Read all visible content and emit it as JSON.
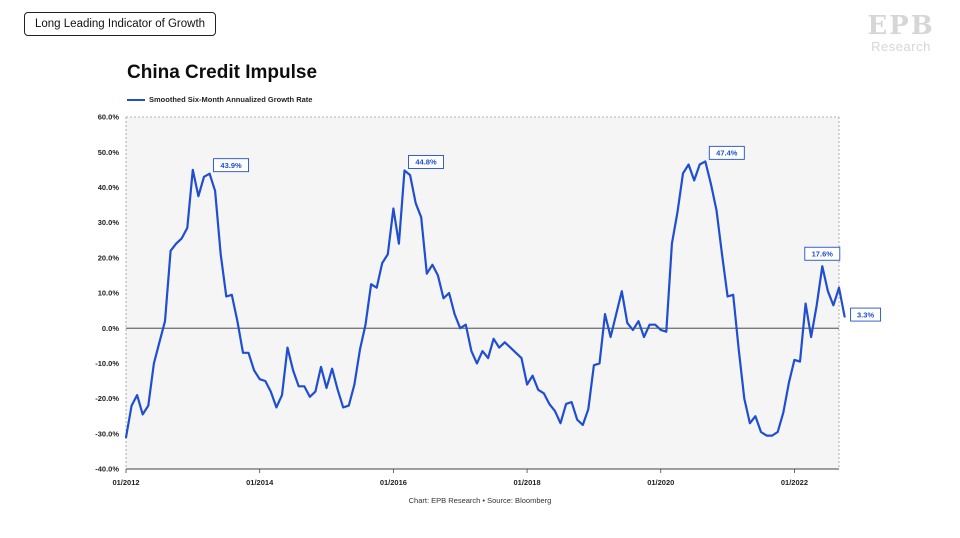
{
  "tag_label": "Long Leading Indicator of Growth",
  "logo": {
    "mark": "EPB",
    "sub": "Research"
  },
  "chart_data": {
    "type": "line",
    "title": "China Credit Impulse",
    "ylim": [
      -40,
      60
    ],
    "y_ticks": [
      -40,
      -30,
      -20,
      -10,
      0,
      10,
      20,
      30,
      40,
      50,
      60
    ],
    "y_tick_labels": [
      "-40.0%",
      "-30.0%",
      "-20.0%",
      "-10.0%",
      "0.0%",
      "10.0%",
      "20.0%",
      "30.0%",
      "40.0%",
      "50.0%",
      "60.0%"
    ],
    "x_tick_labels": [
      "01/2012",
      "01/2014",
      "01/2016",
      "01/2018",
      "01/2020",
      "01/2022"
    ],
    "x_tick_positions": [
      "2012-01",
      "2014-01",
      "2016-01",
      "2018-01",
      "2020-01",
      "2022-01"
    ],
    "xlim": [
      "2012-01",
      "2022-09"
    ],
    "series": [
      {
        "name": "Smoothed Six-Month Annualized Growth Rate",
        "color": "#1f4fd0",
        "points": [
          [
            "2012-01",
            -31
          ],
          [
            "2012-02",
            -22
          ],
          [
            "2012-03",
            -19
          ],
          [
            "2012-04",
            -24.5
          ],
          [
            "2012-05",
            -22
          ],
          [
            "2012-06",
            -10
          ],
          [
            "2012-07",
            -4
          ],
          [
            "2012-08",
            2
          ],
          [
            "2012-09",
            22
          ],
          [
            "2012-10",
            24
          ],
          [
            "2012-11",
            25.5
          ],
          [
            "2012-12",
            28.5
          ],
          [
            "2013-01",
            45
          ],
          [
            "2013-02",
            37.5
          ],
          [
            "2013-03",
            43
          ],
          [
            "2013-04",
            43.9
          ],
          [
            "2013-05",
            39
          ],
          [
            "2013-06",
            21
          ],
          [
            "2013-07",
            9
          ],
          [
            "2013-08",
            9.5
          ],
          [
            "2013-09",
            2
          ],
          [
            "2013-10",
            -7
          ],
          [
            "2013-11",
            -7
          ],
          [
            "2013-12",
            -12
          ],
          [
            "2014-01",
            -14.5
          ],
          [
            "2014-02",
            -15
          ],
          [
            "2014-03",
            -18
          ],
          [
            "2014-04",
            -22.5
          ],
          [
            "2014-05",
            -19
          ],
          [
            "2014-06",
            -5.5
          ],
          [
            "2014-07",
            -12
          ],
          [
            "2014-08",
            -16.5
          ],
          [
            "2014-09",
            -16.5
          ],
          [
            "2014-10",
            -19.5
          ],
          [
            "2014-11",
            -18
          ],
          [
            "2014-12",
            -11
          ],
          [
            "2015-01",
            -17
          ],
          [
            "2015-02",
            -11.5
          ],
          [
            "2015-03",
            -17.5
          ],
          [
            "2015-04",
            -22.5
          ],
          [
            "2015-05",
            -22
          ],
          [
            "2015-06",
            -16
          ],
          [
            "2015-07",
            -6
          ],
          [
            "2015-08",
            1
          ],
          [
            "2015-09",
            12.5
          ],
          [
            "2015-10",
            11.5
          ],
          [
            "2015-11",
            18.5
          ],
          [
            "2015-12",
            21
          ],
          [
            "2016-01",
            34
          ],
          [
            "2016-02",
            24
          ],
          [
            "2016-03",
            44.8
          ],
          [
            "2016-04",
            43.5
          ],
          [
            "2016-05",
            35.5
          ],
          [
            "2016-06",
            31.5
          ],
          [
            "2016-07",
            15.5
          ],
          [
            "2016-08",
            18
          ],
          [
            "2016-09",
            15
          ],
          [
            "2016-10",
            8.5
          ],
          [
            "2016-11",
            10
          ],
          [
            "2016-12",
            4
          ],
          [
            "2017-01",
            0
          ],
          [
            "2017-02",
            1
          ],
          [
            "2017-03",
            -6.5
          ],
          [
            "2017-04",
            -10
          ],
          [
            "2017-05",
            -6.5
          ],
          [
            "2017-06",
            -8.5
          ],
          [
            "2017-07",
            -3
          ],
          [
            "2017-08",
            -5.5
          ],
          [
            "2017-09",
            -4
          ],
          [
            "2017-10",
            -5.5
          ],
          [
            "2017-11",
            -7
          ],
          [
            "2017-12",
            -8.5
          ],
          [
            "2018-01",
            -16
          ],
          [
            "2018-02",
            -13.5
          ],
          [
            "2018-03",
            -17.5
          ],
          [
            "2018-04",
            -18.5
          ],
          [
            "2018-05",
            -21.5
          ],
          [
            "2018-06",
            -23.5
          ],
          [
            "2018-07",
            -27
          ],
          [
            "2018-08",
            -21.5
          ],
          [
            "2018-09",
            -21
          ],
          [
            "2018-10",
            -26
          ],
          [
            "2018-11",
            -27.5
          ],
          [
            "2018-12",
            -23
          ],
          [
            "2019-01",
            -10.5
          ],
          [
            "2019-02",
            -10
          ],
          [
            "2019-03",
            4
          ],
          [
            "2019-04",
            -2.5
          ],
          [
            "2019-05",
            4
          ],
          [
            "2019-06",
            10.5
          ],
          [
            "2019-07",
            1.5
          ],
          [
            "2019-08",
            -0.5
          ],
          [
            "2019-09",
            2
          ],
          [
            "2019-10",
            -2.5
          ],
          [
            "2019-11",
            1
          ],
          [
            "2019-12",
            1
          ],
          [
            "2020-01",
            -0.5
          ],
          [
            "2020-02",
            -1
          ],
          [
            "2020-03",
            24
          ],
          [
            "2020-04",
            33
          ],
          [
            "2020-05",
            44
          ],
          [
            "2020-06",
            46.5
          ],
          [
            "2020-07",
            42
          ],
          [
            "2020-08",
            46.5
          ],
          [
            "2020-09",
            47.4
          ],
          [
            "2020-10",
            41
          ],
          [
            "2020-11",
            33.5
          ],
          [
            "2020-12",
            21
          ],
          [
            "2021-01",
            9
          ],
          [
            "2021-02",
            9.5
          ],
          [
            "2021-03",
            -6
          ],
          [
            "2021-04",
            -20
          ],
          [
            "2021-05",
            -27
          ],
          [
            "2021-06",
            -25
          ],
          [
            "2021-07",
            -29.5
          ],
          [
            "2021-08",
            -30.5
          ],
          [
            "2021-09",
            -30.5
          ],
          [
            "2021-10",
            -29.5
          ],
          [
            "2021-11",
            -24
          ],
          [
            "2021-12",
            -15.5
          ],
          [
            "2022-01",
            -9
          ],
          [
            "2022-02",
            -9.5
          ],
          [
            "2022-03",
            7
          ],
          [
            "2022-04",
            -2.5
          ],
          [
            "2022-05",
            6.5
          ],
          [
            "2022-06",
            17.6
          ],
          [
            "2022-07",
            10.5
          ],
          [
            "2022-08",
            6.5
          ],
          [
            "2022-09",
            11.5
          ],
          [
            "2022-10",
            3.3
          ]
        ]
      }
    ],
    "callouts": [
      {
        "date": "2013-04",
        "value": 43.9,
        "label": "43.9%"
      },
      {
        "date": "2016-03",
        "value": 44.8,
        "label": "44.8%"
      },
      {
        "date": "2020-09",
        "value": 47.4,
        "label": "47.4%"
      },
      {
        "date": "2022-06",
        "value": 17.6,
        "label": "17.6%"
      },
      {
        "date": "2022-10",
        "value": 3.3,
        "label": "3.3%"
      }
    ],
    "grid": false,
    "zero_line": true,
    "plot_background": "#f5f5f5",
    "legend_position": "top-left"
  },
  "source_text": "Chart: EPB Research  •  Source: Bloomberg"
}
